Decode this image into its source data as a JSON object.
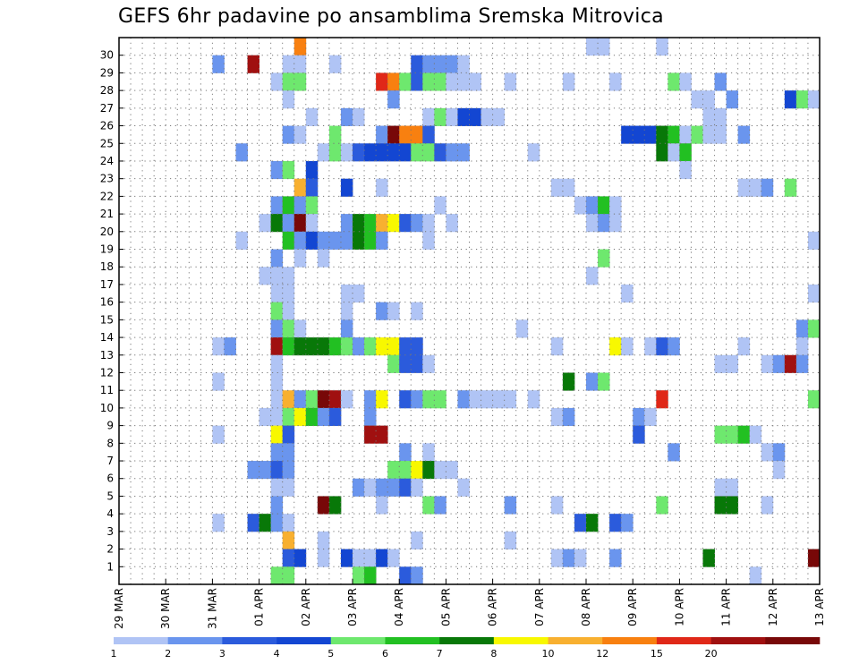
{
  "chart_data": {
    "type": "heatmap",
    "title": "GEFS 6hr padavine po ansamblima Sremska Mitrovica",
    "x_tick_labels": [
      "29 MAR",
      "30 MAR",
      "31 MAR",
      "01 APR",
      "02 APR",
      "03 APR",
      "04 APR",
      "05 APR",
      "06 APR",
      "07 APR",
      "08 APR",
      "09 APR",
      "10 APR",
      "11 APR",
      "12 APR",
      "13 APR"
    ],
    "y_tick_labels": [
      "1",
      "2",
      "3",
      "4",
      "5",
      "6",
      "7",
      "8",
      "9",
      "10",
      "11",
      "12",
      "13",
      "14",
      "15",
      "16",
      "17",
      "18",
      "19",
      "20",
      "21",
      "22",
      "23",
      "24",
      "25",
      "26",
      "27",
      "28",
      "29",
      "30"
    ],
    "ylim": [
      0,
      30
    ],
    "steps_per_day": 4,
    "n_steps": 60,
    "colorbar": {
      "tick_labels": [
        "1",
        "2",
        "3",
        "4",
        "5",
        "6",
        "7",
        "8",
        "10",
        "12",
        "15",
        "20"
      ],
      "levels": [
        1,
        2,
        3,
        4,
        5,
        6,
        7,
        8,
        10,
        12,
        15,
        20
      ],
      "colors": [
        "#b0c4f5",
        "#6a95ee",
        "#2b5bdc",
        "#1346d2",
        "#6ee86e",
        "#22c022",
        "#087808",
        "#f8f800",
        "#f8b030",
        "#f88010",
        "#e02818",
        "#a01010",
        "#780808"
      ]
    },
    "cells": [
      [
        30,
        15,
        9
      ],
      [
        30,
        40,
        0
      ],
      [
        30,
        41,
        0
      ],
      [
        30,
        46,
        0
      ],
      [
        29,
        8,
        1
      ],
      [
        29,
        11,
        11
      ],
      [
        29,
        14,
        0
      ],
      [
        29,
        15,
        0
      ],
      [
        29,
        18,
        0
      ],
      [
        29,
        25,
        2
      ],
      [
        29,
        26,
        1
      ],
      [
        29,
        27,
        1
      ],
      [
        29,
        28,
        1
      ],
      [
        29,
        29,
        0
      ],
      [
        28,
        13,
        0
      ],
      [
        28,
        14,
        4
      ],
      [
        28,
        15,
        4
      ],
      [
        28,
        22,
        10
      ],
      [
        28,
        23,
        9
      ],
      [
        28,
        24,
        4
      ],
      [
        28,
        25,
        2
      ],
      [
        28,
        26,
        4
      ],
      [
        28,
        27,
        4
      ],
      [
        28,
        28,
        0
      ],
      [
        28,
        29,
        0
      ],
      [
        28,
        30,
        0
      ],
      [
        28,
        33,
        0
      ],
      [
        28,
        38,
        0
      ],
      [
        28,
        42,
        0
      ],
      [
        28,
        47,
        4
      ],
      [
        28,
        48,
        0
      ],
      [
        28,
        51,
        1
      ],
      [
        27,
        14,
        0
      ],
      [
        27,
        23,
        1
      ],
      [
        27,
        49,
        0
      ],
      [
        27,
        50,
        0
      ],
      [
        27,
        52,
        1
      ],
      [
        27,
        57,
        3
      ],
      [
        27,
        58,
        4
      ],
      [
        27,
        59,
        0
      ],
      [
        26,
        16,
        0
      ],
      [
        26,
        19,
        1
      ],
      [
        26,
        20,
        0
      ],
      [
        26,
        26,
        0
      ],
      [
        26,
        27,
        4
      ],
      [
        26,
        28,
        0
      ],
      [
        26,
        29,
        3
      ],
      [
        26,
        30,
        3
      ],
      [
        26,
        31,
        0
      ],
      [
        26,
        32,
        0
      ],
      [
        26,
        50,
        0
      ],
      [
        26,
        51,
        0
      ],
      [
        25,
        14,
        1
      ],
      [
        25,
        15,
        0
      ],
      [
        25,
        18,
        4
      ],
      [
        25,
        22,
        1
      ],
      [
        25,
        23,
        12
      ],
      [
        25,
        24,
        9
      ],
      [
        25,
        25,
        9
      ],
      [
        25,
        26,
        2
      ],
      [
        25,
        43,
        3
      ],
      [
        25,
        44,
        3
      ],
      [
        25,
        45,
        3
      ],
      [
        25,
        46,
        6
      ],
      [
        25,
        47,
        5
      ],
      [
        25,
        48,
        0
      ],
      [
        25,
        49,
        4
      ],
      [
        25,
        50,
        0
      ],
      [
        25,
        51,
        0
      ],
      [
        25,
        53,
        1
      ],
      [
        24,
        10,
        1
      ],
      [
        24,
        17,
        0
      ],
      [
        24,
        18,
        4
      ],
      [
        24,
        19,
        0
      ],
      [
        24,
        20,
        2
      ],
      [
        24,
        21,
        3
      ],
      [
        24,
        22,
        3
      ],
      [
        24,
        23,
        3
      ],
      [
        24,
        24,
        3
      ],
      [
        24,
        25,
        4
      ],
      [
        24,
        26,
        4
      ],
      [
        24,
        27,
        2
      ],
      [
        24,
        28,
        1
      ],
      [
        24,
        29,
        1
      ],
      [
        24,
        35,
        0
      ],
      [
        24,
        46,
        6
      ],
      [
        24,
        47,
        0
      ],
      [
        24,
        48,
        5
      ],
      [
        23,
        13,
        1
      ],
      [
        23,
        14,
        4
      ],
      [
        23,
        16,
        3
      ],
      [
        23,
        48,
        0
      ],
      [
        22,
        15,
        8
      ],
      [
        22,
        16,
        2
      ],
      [
        22,
        19,
        3
      ],
      [
        22,
        22,
        0
      ],
      [
        22,
        37,
        0
      ],
      [
        22,
        38,
        0
      ],
      [
        22,
        53,
        0
      ],
      [
        22,
        54,
        0
      ],
      [
        22,
        55,
        1
      ],
      [
        22,
        57,
        4
      ],
      [
        21,
        13,
        1
      ],
      [
        21,
        14,
        5
      ],
      [
        21,
        15,
        1
      ],
      [
        21,
        16,
        4
      ],
      [
        21,
        27,
        0
      ],
      [
        21,
        39,
        0
      ],
      [
        21,
        40,
        1
      ],
      [
        21,
        41,
        5
      ],
      [
        21,
        42,
        0
      ],
      [
        20,
        12,
        0
      ],
      [
        20,
        13,
        6
      ],
      [
        20,
        14,
        1
      ],
      [
        20,
        15,
        12
      ],
      [
        20,
        16,
        0
      ],
      [
        20,
        19,
        1
      ],
      [
        20,
        20,
        6
      ],
      [
        20,
        21,
        5
      ],
      [
        20,
        22,
        8
      ],
      [
        20,
        23,
        7
      ],
      [
        20,
        24,
        2
      ],
      [
        20,
        25,
        1
      ],
      [
        20,
        26,
        0
      ],
      [
        20,
        28,
        0
      ],
      [
        20,
        40,
        0
      ],
      [
        20,
        41,
        1
      ],
      [
        20,
        42,
        0
      ],
      [
        19,
        10,
        0
      ],
      [
        19,
        14,
        5
      ],
      [
        19,
        15,
        1
      ],
      [
        19,
        16,
        3
      ],
      [
        19,
        17,
        1
      ],
      [
        19,
        18,
        1
      ],
      [
        19,
        19,
        1
      ],
      [
        19,
        20,
        6
      ],
      [
        19,
        21,
        5
      ],
      [
        19,
        22,
        1
      ],
      [
        19,
        26,
        0
      ],
      [
        19,
        59,
        0
      ],
      [
        18,
        13,
        1
      ],
      [
        18,
        15,
        0
      ],
      [
        18,
        17,
        0
      ],
      [
        18,
        41,
        4
      ],
      [
        17,
        12,
        0
      ],
      [
        17,
        13,
        0
      ],
      [
        17,
        14,
        0
      ],
      [
        17,
        40,
        0
      ],
      [
        16,
        13,
        0
      ],
      [
        16,
        14,
        0
      ],
      [
        16,
        19,
        0
      ],
      [
        16,
        20,
        0
      ],
      [
        16,
        43,
        0
      ],
      [
        16,
        59,
        0
      ],
      [
        15,
        13,
        4
      ],
      [
        15,
        14,
        0
      ],
      [
        15,
        19,
        0
      ],
      [
        15,
        22,
        1
      ],
      [
        15,
        23,
        0
      ],
      [
        15,
        25,
        0
      ],
      [
        14,
        13,
        1
      ],
      [
        14,
        14,
        4
      ],
      [
        14,
        15,
        0
      ],
      [
        14,
        19,
        1
      ],
      [
        14,
        34,
        0
      ],
      [
        14,
        58,
        1
      ],
      [
        14,
        59,
        4
      ],
      [
        13,
        8,
        0
      ],
      [
        13,
        9,
        1
      ],
      [
        13,
        13,
        11
      ],
      [
        13,
        14,
        5
      ],
      [
        13,
        15,
        6
      ],
      [
        13,
        16,
        6
      ],
      [
        13,
        17,
        6
      ],
      [
        13,
        18,
        5
      ],
      [
        13,
        19,
        4
      ],
      [
        13,
        20,
        1
      ],
      [
        13,
        21,
        4
      ],
      [
        13,
        22,
        7
      ],
      [
        13,
        23,
        7
      ],
      [
        13,
        24,
        2
      ],
      [
        13,
        25,
        2
      ],
      [
        13,
        37,
        0
      ],
      [
        13,
        42,
        7
      ],
      [
        13,
        43,
        0
      ],
      [
        13,
        45,
        0
      ],
      [
        13,
        46,
        2
      ],
      [
        13,
        47,
        1
      ],
      [
        13,
        53,
        0
      ],
      [
        13,
        58,
        0
      ],
      [
        12,
        13,
        0
      ],
      [
        12,
        23,
        4
      ],
      [
        12,
        24,
        2
      ],
      [
        12,
        25,
        2
      ],
      [
        12,
        26,
        0
      ],
      [
        12,
        51,
        0
      ],
      [
        12,
        52,
        0
      ],
      [
        12,
        55,
        0
      ],
      [
        12,
        56,
        1
      ],
      [
        12,
        57,
        11
      ],
      [
        12,
        58,
        1
      ],
      [
        11,
        8,
        0
      ],
      [
        11,
        13,
        0
      ],
      [
        11,
        38,
        6
      ],
      [
        11,
        40,
        1
      ],
      [
        11,
        41,
        4
      ],
      [
        10,
        13,
        0
      ],
      [
        10,
        14,
        8
      ],
      [
        10,
        15,
        1
      ],
      [
        10,
        16,
        4
      ],
      [
        10,
        17,
        12
      ],
      [
        10,
        18,
        11
      ],
      [
        10,
        19,
        0
      ],
      [
        10,
        21,
        1
      ],
      [
        10,
        22,
        7
      ],
      [
        10,
        24,
        2
      ],
      [
        10,
        25,
        1
      ],
      [
        10,
        26,
        4
      ],
      [
        10,
        27,
        4
      ],
      [
        10,
        29,
        1
      ],
      [
        10,
        30,
        0
      ],
      [
        10,
        31,
        0
      ],
      [
        10,
        32,
        0
      ],
      [
        10,
        33,
        0
      ],
      [
        10,
        35,
        0
      ],
      [
        10,
        46,
        10
      ],
      [
        10,
        59,
        4
      ],
      [
        9,
        12,
        0
      ],
      [
        9,
        13,
        0
      ],
      [
        9,
        14,
        4
      ],
      [
        9,
        15,
        7
      ],
      [
        9,
        16,
        5
      ],
      [
        9,
        17,
        1
      ],
      [
        9,
        18,
        2
      ],
      [
        9,
        21,
        1
      ],
      [
        9,
        37,
        0
      ],
      [
        9,
        38,
        1
      ],
      [
        9,
        44,
        1
      ],
      [
        9,
        45,
        0
      ],
      [
        8,
        8,
        0
      ],
      [
        8,
        13,
        7
      ],
      [
        8,
        14,
        2
      ],
      [
        8,
        21,
        11
      ],
      [
        8,
        22,
        11
      ],
      [
        8,
        44,
        2
      ],
      [
        8,
        51,
        4
      ],
      [
        8,
        52,
        4
      ],
      [
        8,
        53,
        5
      ],
      [
        8,
        54,
        0
      ],
      [
        7,
        13,
        1
      ],
      [
        7,
        14,
        1
      ],
      [
        7,
        24,
        1
      ],
      [
        7,
        26,
        0
      ],
      [
        7,
        47,
        1
      ],
      [
        7,
        55,
        0
      ],
      [
        7,
        56,
        1
      ],
      [
        6,
        11,
        1
      ],
      [
        6,
        12,
        1
      ],
      [
        6,
        13,
        2
      ],
      [
        6,
        14,
        1
      ],
      [
        6,
        23,
        4
      ],
      [
        6,
        24,
        4
      ],
      [
        6,
        25,
        7
      ],
      [
        6,
        26,
        6
      ],
      [
        6,
        27,
        0
      ],
      [
        6,
        28,
        0
      ],
      [
        6,
        56,
        0
      ],
      [
        5,
        13,
        0
      ],
      [
        5,
        14,
        0
      ],
      [
        5,
        20,
        1
      ],
      [
        5,
        21,
        0
      ],
      [
        5,
        22,
        1
      ],
      [
        5,
        23,
        1
      ],
      [
        5,
        24,
        2
      ],
      [
        5,
        25,
        0
      ],
      [
        5,
        29,
        0
      ],
      [
        5,
        51,
        0
      ],
      [
        5,
        52,
        0
      ],
      [
        4,
        13,
        1
      ],
      [
        4,
        17,
        12
      ],
      [
        4,
        18,
        6
      ],
      [
        4,
        22,
        0
      ],
      [
        4,
        26,
        4
      ],
      [
        4,
        27,
        1
      ],
      [
        4,
        33,
        1
      ],
      [
        4,
        37,
        0
      ],
      [
        4,
        46,
        4
      ],
      [
        4,
        51,
        6
      ],
      [
        4,
        52,
        6
      ],
      [
        4,
        55,
        0
      ],
      [
        3,
        8,
        0
      ],
      [
        3,
        11,
        2
      ],
      [
        3,
        12,
        6
      ],
      [
        3,
        13,
        1
      ],
      [
        3,
        14,
        0
      ],
      [
        3,
        39,
        2
      ],
      [
        3,
        40,
        6
      ],
      [
        3,
        42,
        2
      ],
      [
        3,
        43,
        1
      ],
      [
        2,
        14,
        8
      ],
      [
        2,
        17,
        0
      ],
      [
        2,
        25,
        0
      ],
      [
        2,
        33,
        0
      ],
      [
        1,
        14,
        2
      ],
      [
        1,
        15,
        3
      ],
      [
        1,
        17,
        0
      ],
      [
        1,
        19,
        3
      ],
      [
        1,
        20,
        0
      ],
      [
        1,
        21,
        0
      ],
      [
        1,
        22,
        3
      ],
      [
        1,
        23,
        0
      ],
      [
        1,
        37,
        0
      ],
      [
        1,
        38,
        1
      ],
      [
        1,
        39,
        0
      ],
      [
        1,
        42,
        1
      ],
      [
        1,
        50,
        6
      ],
      [
        1,
        59,
        12
      ],
      [
        0,
        13,
        4
      ],
      [
        0,
        14,
        4
      ],
      [
        0,
        20,
        4
      ],
      [
        0,
        21,
        5
      ],
      [
        0,
        24,
        2
      ],
      [
        0,
        25,
        1
      ],
      [
        0,
        54,
        0
      ]
    ]
  }
}
